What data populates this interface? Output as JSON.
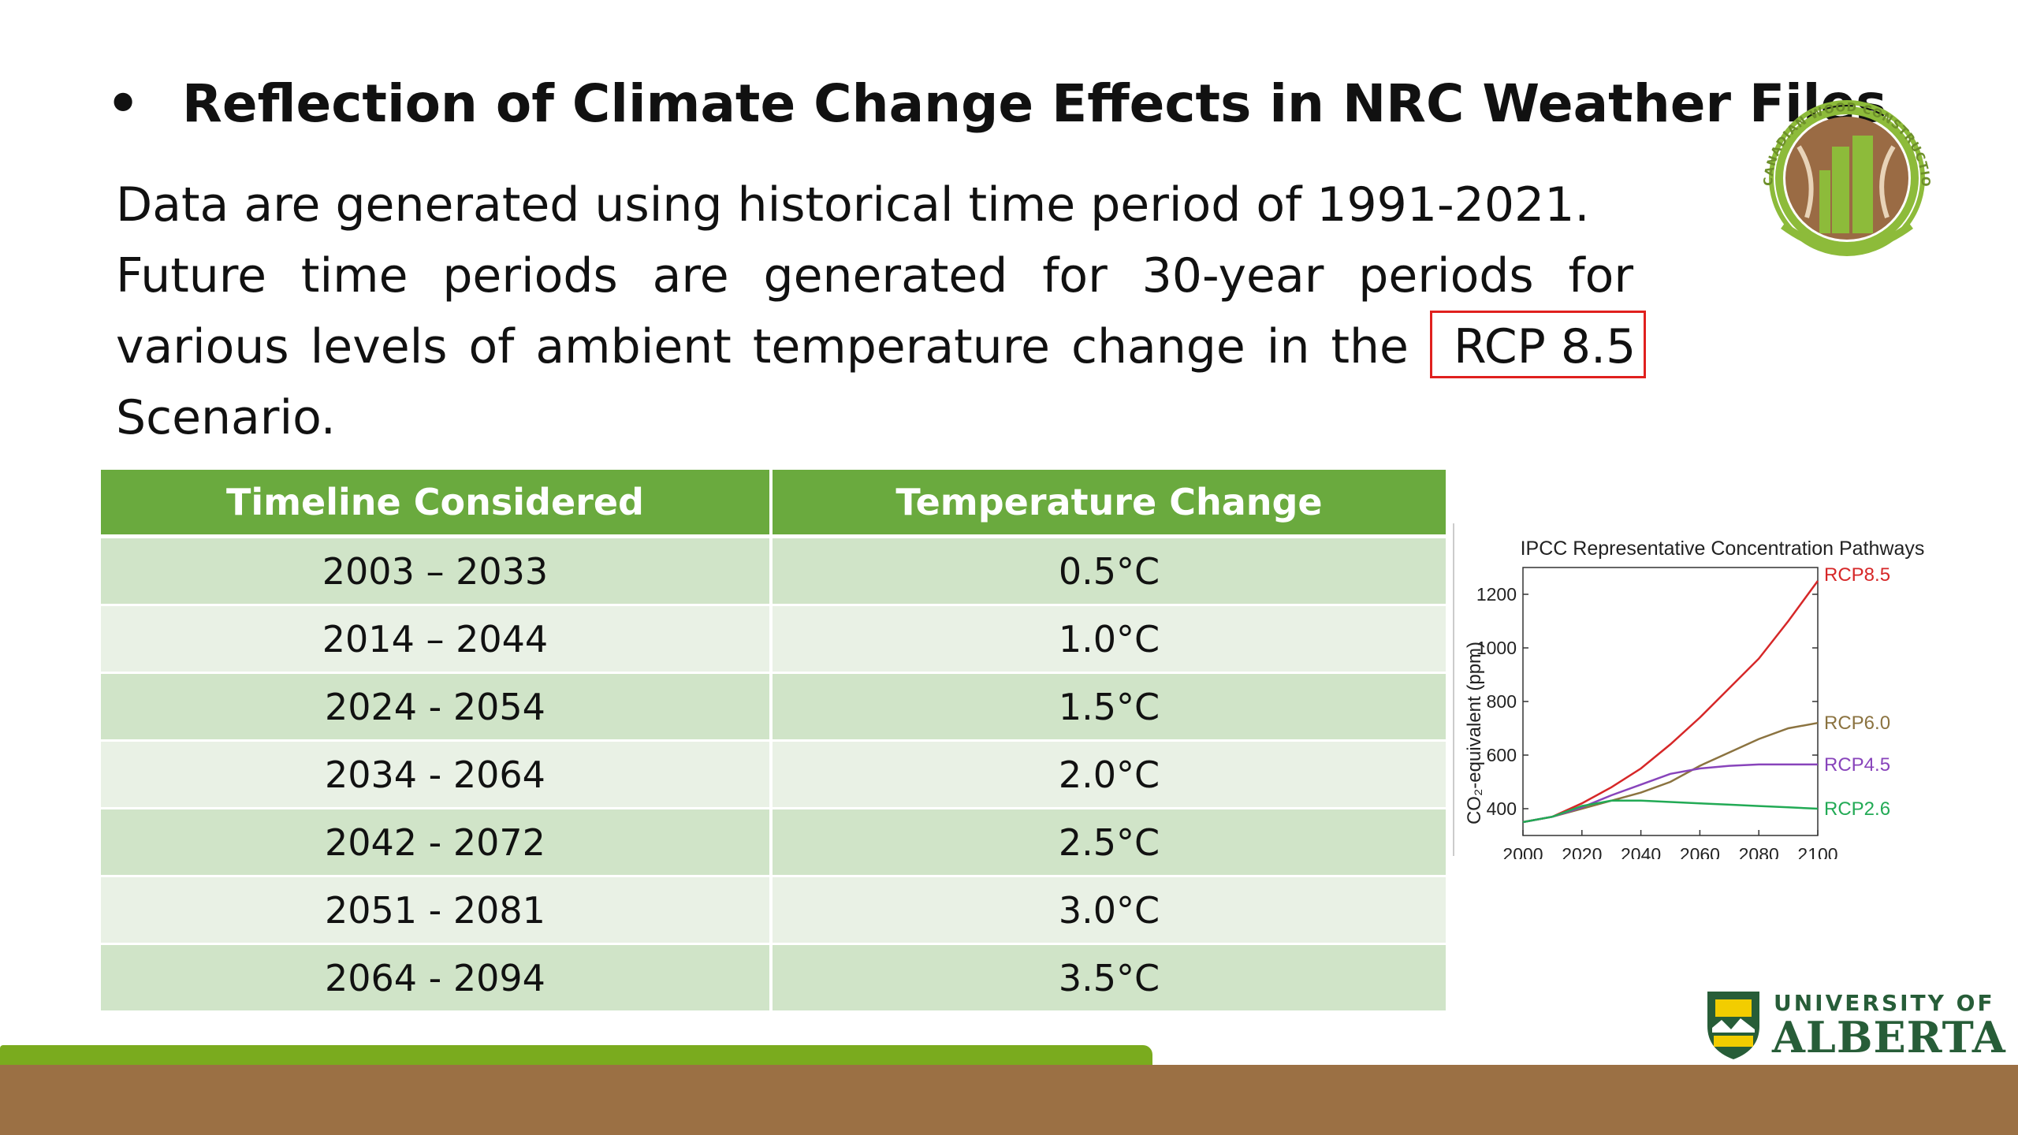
{
  "slide": {
    "bullet": "•",
    "title": "Reflection of Climate Change Effects in NRC Weather Files",
    "paragraph": {
      "line1": "Data are generated using historical time period of 1991-2021.",
      "line2": "Future time periods are generated for 30-year periods for",
      "line3_before": "various levels of ambient temperature change in the",
      "line3_highlight": "RCP 8.5",
      "line4": "Scenario."
    },
    "highlight_color": "#e0201e"
  },
  "table": {
    "headers": [
      "Timeline Considered",
      "Temperature Change"
    ],
    "rows": [
      [
        "2003 – 2033",
        "0.5°C"
      ],
      [
        "2014 – 2044",
        "1.0°C"
      ],
      [
        "2024 - 2054",
        "1.5°C"
      ],
      [
        "2034 - 2064",
        "2.0°C"
      ],
      [
        "2042 - 2072",
        "2.5°C"
      ],
      [
        "2051 - 2081",
        "3.0°C"
      ],
      [
        "2064 - 2094",
        "3.5°C"
      ]
    ],
    "header_color": "#6aaa3e",
    "row_colors": [
      "#d0e4c8",
      "#e9f1e5"
    ]
  },
  "chart_data": {
    "type": "line",
    "title": "IPCC Representative Concentration Pathways",
    "xlabel": "",
    "ylabel": "CO₂-equivalent (ppm)",
    "xlim": [
      2000,
      2100
    ],
    "ylim": [
      300,
      1300
    ],
    "xticks": [
      2000,
      2020,
      2040,
      2060,
      2080,
      2100
    ],
    "yticks": [
      400,
      600,
      800,
      1000,
      1200
    ],
    "grid": false,
    "legend": "labels at line ends (right)",
    "x": [
      2000,
      2010,
      2020,
      2030,
      2040,
      2050,
      2060,
      2070,
      2080,
      2090,
      2100
    ],
    "series": [
      {
        "name": "RCP8.5",
        "color": "#d62728",
        "values": [
          350,
          370,
          420,
          480,
          550,
          640,
          740,
          850,
          960,
          1100,
          1250
        ]
      },
      {
        "name": "RCP6.0",
        "color": "#8b7340",
        "values": [
          350,
          370,
          400,
          430,
          460,
          500,
          560,
          610,
          660,
          700,
          720
        ]
      },
      {
        "name": "RCP4.5",
        "color": "#8844bb",
        "values": [
          350,
          370,
          405,
          450,
          490,
          530,
          550,
          560,
          565,
          565,
          565
        ]
      },
      {
        "name": "RCP2.6",
        "color": "#22aa55",
        "values": [
          350,
          370,
          410,
          430,
          430,
          425,
          420,
          415,
          410,
          405,
          400
        ]
      }
    ]
  },
  "logos": {
    "cwc_text": "CANADIAN WOOD CONSTRUCTION RESEARCH NETWORK",
    "ua_line1": "UNIVERSITY OF",
    "ua_line2": "ALBERTA"
  },
  "colors": {
    "green_bar": "#7aab1e",
    "brown_band": "#9b7044",
    "ua_green": "#275d38"
  }
}
